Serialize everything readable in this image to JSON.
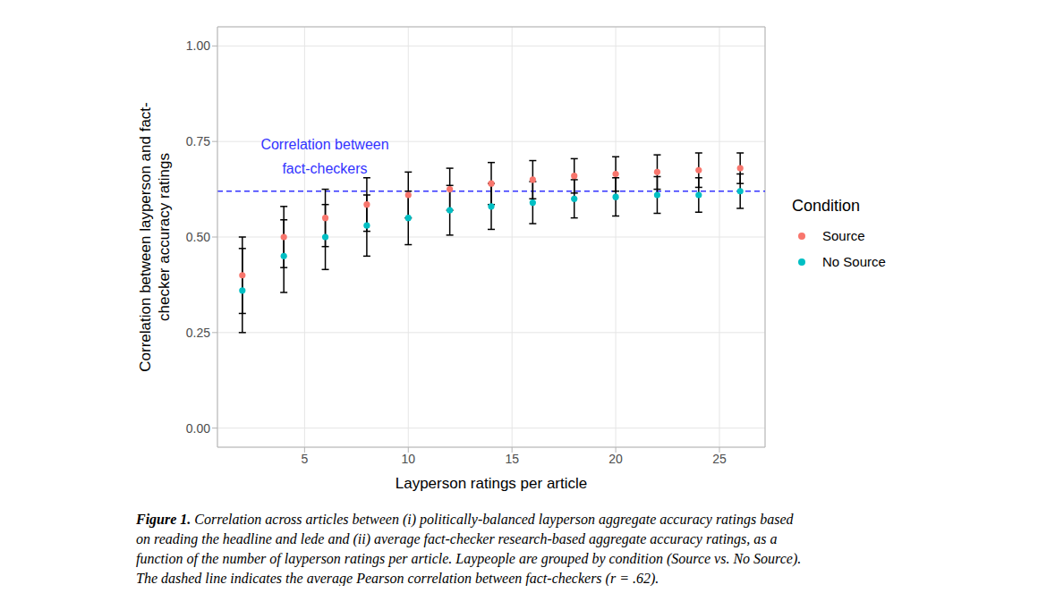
{
  "chart_data": {
    "type": "scatter",
    "x_label": "Layperson ratings per article",
    "y_label": [
      "Correlation between layperson and fact-",
      "checker accuracy ratings"
    ],
    "x": [
      2,
      4,
      6,
      8,
      10,
      12,
      14,
      16,
      18,
      20,
      22,
      24,
      26
    ],
    "series": [
      {
        "name": "Source",
        "color": "#F8766D",
        "marker": "circle",
        "values": [
          0.4,
          0.5,
          0.55,
          0.585,
          0.61,
          0.625,
          0.64,
          0.65,
          0.66,
          0.665,
          0.67,
          0.675,
          0.68
        ],
        "errors": [
          0.1,
          0.08,
          0.075,
          0.07,
          0.06,
          0.055,
          0.055,
          0.05,
          0.045,
          0.045,
          0.045,
          0.045,
          0.04
        ]
      },
      {
        "name": "No Source",
        "color": "#00BFC4",
        "marker": "circle",
        "values": [
          0.36,
          0.45,
          0.5,
          0.53,
          0.55,
          0.57,
          0.58,
          0.59,
          0.6,
          0.605,
          0.61,
          0.61,
          0.62
        ],
        "errors": [
          0.11,
          0.095,
          0.085,
          0.08,
          0.07,
          0.065,
          0.06,
          0.055,
          0.05,
          0.05,
          0.048,
          0.045,
          0.045
        ]
      }
    ],
    "xlim": [
      0.8,
      27.2
    ],
    "xticks": [
      5,
      10,
      15,
      20,
      25
    ],
    "ylim": [
      -0.05,
      1.05
    ],
    "yticks": [
      {
        "value": 0,
        "label": "0.00"
      },
      {
        "value": 0.25,
        "label": "0.25"
      },
      {
        "value": 0.5,
        "label": "0.50"
      },
      {
        "value": 0.75,
        "label": "0.75"
      },
      {
        "value": 1,
        "label": "1.00"
      }
    ],
    "grid": true,
    "legend": "right",
    "legend_title": "Condition",
    "reference_line": {
      "value": 0.62,
      "label": [
        "Correlation between",
        "fact-checkers"
      ],
      "color": "#3333ff",
      "line_style": "dashed"
    },
    "caption_label": "Figure 1.",
    "caption": [
      "Correlation across articles between (i) politically-balanced layperson aggregate accuracy ratings based",
      "on reading the headline and lede and (ii) average fact-checker research-based aggregate accuracy ratings, as a",
      "function of the number of layperson ratings per article. Laypeople are grouped by condition (Source vs. No Source).",
      "The dashed line indicates the average Pearson correlation between fact-checkers (r = .62)."
    ]
  }
}
